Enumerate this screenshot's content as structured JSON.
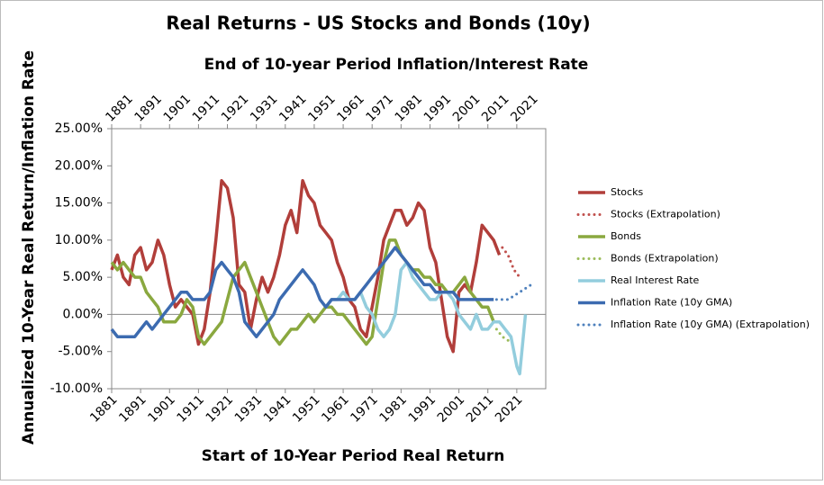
{
  "chart_data": {
    "type": "line",
    "title": "Real Returns - US Stocks and Bonds (10y)",
    "x_label": "Start of 10-Year Period Real Return",
    "x2_label": "End of 10-year Period Inflation/Interest Rate",
    "y_label": "Annualized 10-Year Real Return/Inflation Rate",
    "xlim": [
      1881,
      2031
    ],
    "xticks": [
      1881,
      1891,
      1901,
      1911,
      1921,
      1931,
      1941,
      1951,
      1961,
      1971,
      1981,
      1991,
      2001,
      2011,
      2021
    ],
    "x2lim": [
      1881,
      2031
    ],
    "x2ticks": [
      1881,
      1891,
      1901,
      1911,
      1921,
      1931,
      1941,
      1951,
      1961,
      1971,
      1981,
      1991,
      2001,
      2011,
      2021
    ],
    "ylim": [
      -10,
      25
    ],
    "yticks": [
      {
        "value": -10,
        "label": "-10.00%"
      },
      {
        "value": -5,
        "label": "-5.00%"
      },
      {
        "value": 0,
        "label": "0.00%"
      },
      {
        "value": 5,
        "label": "5.00%"
      },
      {
        "value": 10,
        "label": "10.00%"
      },
      {
        "value": 15,
        "label": "15.00%"
      },
      {
        "value": 20,
        "label": "20.00%"
      },
      {
        "value": 25,
        "label": "25.00%"
      }
    ],
    "grid": false,
    "legend": "right",
    "series": [
      {
        "name": "Stocks",
        "color": "#b13e3a",
        "style": "solid",
        "x": [
          1881,
          1883,
          1885,
          1887,
          1889,
          1891,
          1893,
          1895,
          1897,
          1899,
          1901,
          1903,
          1905,
          1907,
          1909,
          1911,
          1913,
          1915,
          1917,
          1919,
          1921,
          1923,
          1925,
          1927,
          1929,
          1931,
          1933,
          1935,
          1937,
          1939,
          1941,
          1943,
          1945,
          1947,
          1949,
          1951,
          1953,
          1955,
          1957,
          1959,
          1961,
          1963,
          1965,
          1967,
          1969,
          1971,
          1973,
          1975,
          1977,
          1979,
          1981,
          1983,
          1985,
          1987,
          1989,
          1991,
          1993,
          1995,
          1997,
          1999,
          2001,
          2003,
          2005,
          2007,
          2009,
          2011,
          2013,
          2015
        ],
        "values": [
          6,
          8,
          5,
          4,
          8,
          9,
          6,
          7,
          10,
          8,
          4,
          1,
          2,
          1,
          0,
          -4,
          -2,
          3,
          10,
          18,
          17,
          13,
          4,
          3,
          -2,
          2,
          5,
          3,
          5,
          8,
          12,
          14,
          11,
          18,
          16,
          15,
          12,
          11,
          10,
          7,
          5,
          2,
          1,
          -2,
          -3,
          1,
          5,
          10,
          12,
          14,
          14,
          12,
          13,
          15,
          14,
          9,
          7,
          2,
          -3,
          -5,
          3,
          4,
          3,
          7,
          12,
          11,
          10,
          8
        ]
      },
      {
        "name": "Stocks (Extrapolation)",
        "color": "#c0504d",
        "style": "dotted",
        "x": [
          2016,
          2018,
          2019,
          2020,
          2022
        ],
        "values": [
          9,
          8,
          7,
          6,
          5
        ]
      },
      {
        "name": "Bonds",
        "color": "#8aa83f",
        "style": "solid",
        "x": [
          1881,
          1883,
          1885,
          1887,
          1889,
          1891,
          1893,
          1895,
          1897,
          1899,
          1901,
          1903,
          1905,
          1907,
          1909,
          1911,
          1913,
          1915,
          1917,
          1919,
          1921,
          1923,
          1925,
          1927,
          1929,
          1931,
          1933,
          1935,
          1937,
          1939,
          1941,
          1943,
          1945,
          1947,
          1949,
          1951,
          1953,
          1955,
          1957,
          1959,
          1961,
          1963,
          1965,
          1967,
          1969,
          1971,
          1973,
          1975,
          1977,
          1979,
          1981,
          1983,
          1985,
          1987,
          1989,
          1991,
          1993,
          1995,
          1997,
          1999,
          2001,
          2003,
          2005,
          2007,
          2009,
          2011,
          2013
        ],
        "values": [
          7,
          6,
          7,
          6,
          5,
          5,
          3,
          2,
          1,
          -1,
          -1,
          -1,
          0,
          2,
          1,
          -3,
          -4,
          -3,
          -2,
          -1,
          2,
          5,
          6,
          7,
          5,
          3,
          1,
          -1,
          -3,
          -4,
          -3,
          -2,
          -2,
          -1,
          0,
          -1,
          0,
          1,
          1,
          0,
          0,
          -1,
          -2,
          -3,
          -4,
          -3,
          2,
          7,
          10,
          10,
          8,
          7,
          6,
          6,
          5,
          5,
          4,
          4,
          3,
          3,
          4,
          5,
          3,
          2,
          1,
          1,
          -1
        ]
      },
      {
        "name": "Bonds (Extrapolation)",
        "color": "#9bbb59",
        "style": "dotted",
        "x": [
          2014,
          2016,
          2018,
          2019
        ],
        "values": [
          -2,
          -3,
          -3.5,
          -3
        ]
      },
      {
        "name": "Real Interest Rate",
        "color": "#93cddd",
        "style": "solid",
        "x": [
          1955,
          1957,
          1959,
          1961,
          1963,
          1965,
          1967,
          1969,
          1971,
          1973,
          1975,
          1977,
          1979,
          1981,
          1983,
          1985,
          1987,
          1989,
          1991,
          1993,
          1995,
          1997,
          1999,
          2001,
          2003,
          2005,
          2007,
          2009,
          2011,
          2013,
          2015,
          2017,
          2019,
          2021,
          2022,
          2024
        ],
        "values": [
          1,
          2,
          2,
          3,
          2,
          2,
          3,
          1,
          0,
          -2,
          -3,
          -2,
          0,
          6,
          7,
          5,
          4,
          3,
          2,
          2,
          3,
          3,
          2,
          0,
          -1,
          -2,
          0,
          -2,
          -2,
          -1,
          -1,
          -2,
          -3,
          -7,
          -8,
          0
        ]
      },
      {
        "name": "Inflation Rate (10y GMA)",
        "color": "#3c6bb0",
        "style": "solid",
        "x": [
          1881,
          1883,
          1885,
          1887,
          1889,
          1891,
          1893,
          1895,
          1897,
          1899,
          1901,
          1903,
          1905,
          1907,
          1909,
          1911,
          1913,
          1915,
          1917,
          1919,
          1921,
          1923,
          1925,
          1927,
          1929,
          1931,
          1933,
          1935,
          1937,
          1939,
          1941,
          1943,
          1945,
          1947,
          1949,
          1951,
          1953,
          1955,
          1957,
          1959,
          1961,
          1963,
          1965,
          1967,
          1969,
          1971,
          1973,
          1975,
          1977,
          1979,
          1981,
          1983,
          1985,
          1987,
          1989,
          1991,
          1993,
          1995,
          1997,
          1999,
          2001,
          2003,
          2005,
          2007,
          2009,
          2011,
          2013
        ],
        "values": [
          -2,
          -3,
          -3,
          -3,
          -3,
          -2,
          -1,
          -2,
          -1,
          0,
          1,
          2,
          3,
          3,
          2,
          2,
          2,
          3,
          6,
          7,
          6,
          5,
          3,
          -1,
          -2,
          -3,
          -2,
          -1,
          0,
          2,
          3,
          4,
          5,
          6,
          5,
          4,
          2,
          1,
          2,
          2,
          2,
          2,
          2,
          3,
          4,
          5,
          6,
          7,
          8,
          9,
          8,
          7,
          6,
          5,
          4,
          4,
          3,
          3,
          3,
          3,
          2,
          2,
          2,
          2,
          2,
          2,
          2
        ]
      },
      {
        "name": "Inflation Rate (10y GMA) (Extrapolation)",
        "color": "#4f81bd",
        "style": "dotted",
        "x": [
          2014,
          2016,
          2018,
          2020,
          2022,
          2024,
          2026
        ],
        "values": [
          2,
          2,
          2,
          2.5,
          3,
          3.5,
          4
        ]
      }
    ]
  }
}
